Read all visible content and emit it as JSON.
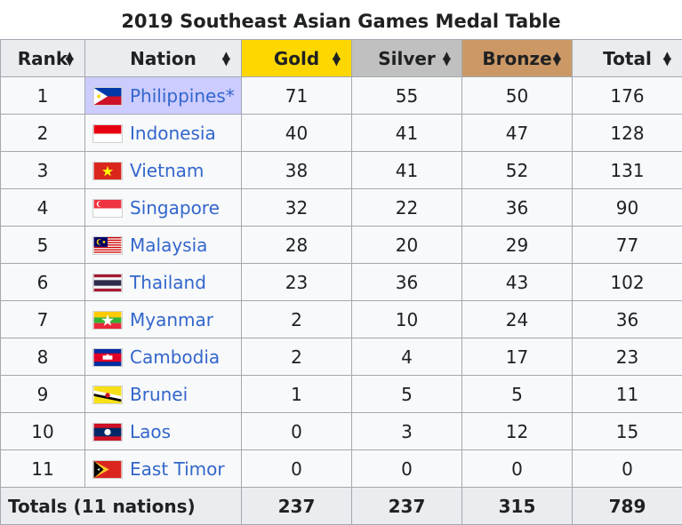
{
  "title": "2019 Southeast Asian Games Medal Table",
  "columns": {
    "rank": "Rank",
    "nation": "Nation",
    "gold": "Gold",
    "silver": "Silver",
    "bronze": "Bronze",
    "total": "Total"
  },
  "colors": {
    "gold": "#ffd700",
    "silver": "#c0c0c0",
    "bronze": "#cc9966",
    "host": "#ccccff",
    "link": "#3366cc"
  },
  "rows": [
    {
      "rank": "1",
      "nation": "Philippines*",
      "flag": "philippines-flag-icon",
      "gold": "71",
      "silver": "55",
      "bronze": "50",
      "total": "176",
      "host": true
    },
    {
      "rank": "2",
      "nation": "Indonesia",
      "flag": "indonesia-flag-icon",
      "gold": "40",
      "silver": "41",
      "bronze": "47",
      "total": "128"
    },
    {
      "rank": "3",
      "nation": "Vietnam",
      "flag": "vietnam-flag-icon",
      "gold": "38",
      "silver": "41",
      "bronze": "52",
      "total": "131"
    },
    {
      "rank": "4",
      "nation": "Singapore",
      "flag": "singapore-flag-icon",
      "gold": "32",
      "silver": "22",
      "bronze": "36",
      "total": "90"
    },
    {
      "rank": "5",
      "nation": "Malaysia",
      "flag": "malaysia-flag-icon",
      "gold": "28",
      "silver": "20",
      "bronze": "29",
      "total": "77"
    },
    {
      "rank": "6",
      "nation": "Thailand",
      "flag": "thailand-flag-icon",
      "gold": "23",
      "silver": "36",
      "bronze": "43",
      "total": "102"
    },
    {
      "rank": "7",
      "nation": "Myanmar",
      "flag": "myanmar-flag-icon",
      "gold": "2",
      "silver": "10",
      "bronze": "24",
      "total": "36"
    },
    {
      "rank": "8",
      "nation": "Cambodia",
      "flag": "cambodia-flag-icon",
      "gold": "2",
      "silver": "4",
      "bronze": "17",
      "total": "23"
    },
    {
      "rank": "9",
      "nation": "Brunei",
      "flag": "brunei-flag-icon",
      "gold": "1",
      "silver": "5",
      "bronze": "5",
      "total": "11"
    },
    {
      "rank": "10",
      "nation": "Laos",
      "flag": "laos-flag-icon",
      "gold": "0",
      "silver": "3",
      "bronze": "12",
      "total": "15"
    },
    {
      "rank": "11",
      "nation": "East Timor",
      "flag": "east-timor-flag-icon",
      "gold": "0",
      "silver": "0",
      "bronze": "0",
      "total": "0"
    }
  ],
  "totals": {
    "label": "Totals (11 nations)",
    "gold": "237",
    "silver": "237",
    "bronze": "315",
    "total": "789"
  },
  "chart_data": {
    "type": "table",
    "title": "2019 Southeast Asian Games Medal Table",
    "columns": [
      "Rank",
      "Nation",
      "Gold",
      "Silver",
      "Bronze",
      "Total"
    ],
    "rows": [
      [
        1,
        "Philippines*",
        71,
        55,
        50,
        176
      ],
      [
        2,
        "Indonesia",
        40,
        41,
        47,
        128
      ],
      [
        3,
        "Vietnam",
        38,
        41,
        52,
        131
      ],
      [
        4,
        "Singapore",
        32,
        22,
        36,
        90
      ],
      [
        5,
        "Malaysia",
        28,
        20,
        29,
        77
      ],
      [
        6,
        "Thailand",
        23,
        36,
        43,
        102
      ],
      [
        7,
        "Myanmar",
        2,
        10,
        24,
        36
      ],
      [
        8,
        "Cambodia",
        2,
        4,
        17,
        23
      ],
      [
        9,
        "Brunei",
        1,
        5,
        5,
        11
      ],
      [
        10,
        "Laos",
        0,
        3,
        12,
        15
      ],
      [
        11,
        "East Timor",
        0,
        0,
        0,
        0
      ]
    ],
    "totals": [
      "Totals (11 nations)",
      237,
      237,
      315,
      789
    ]
  }
}
